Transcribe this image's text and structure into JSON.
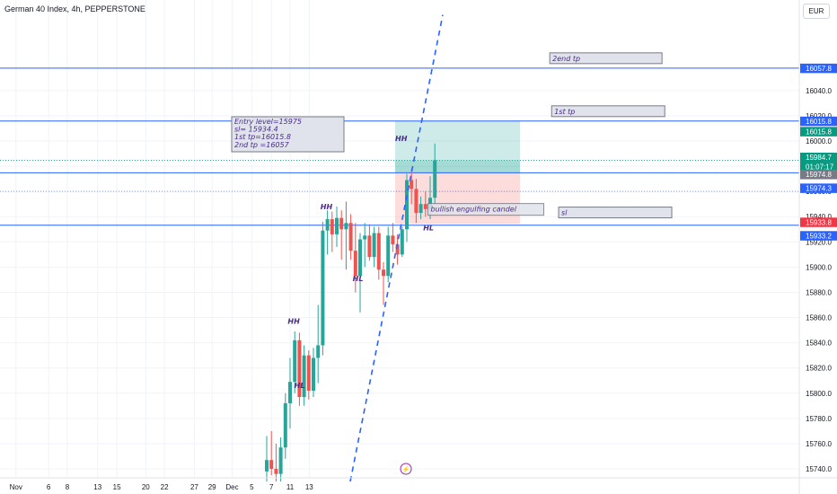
{
  "header": {
    "title": "German 40 Index, 4h, PEPPERSTONE",
    "currency": "EUR"
  },
  "chart_data": {
    "type": "candlestick",
    "title": "German 40 Index, 4h, PEPPERSTONE",
    "ylim": [
      15730,
      16100
    ],
    "y_ticks": [
      15740,
      15760,
      15780,
      15800,
      15820,
      15840,
      15860,
      15880,
      15900,
      15920,
      15940,
      15960,
      15980,
      16000,
      16020,
      16040
    ],
    "x_ticks": [
      "Nov",
      "6",
      "8",
      "13",
      "15",
      "20",
      "22",
      "27",
      "29",
      "Dec",
      "5",
      "7",
      "11",
      "13"
    ],
    "colors": {
      "up": "#26a69a",
      "down": "#ef5350",
      "level": "#2962ff",
      "trend": "#2962ff",
      "tp_zone": "#26a69a",
      "sl_zone": "#ef5350",
      "note": "#4a2b8c"
    },
    "candles": [
      {
        "o": 15738,
        "h": 15766,
        "l": 15730,
        "c": 15747
      },
      {
        "o": 15747,
        "h": 15770,
        "l": 15735,
        "c": 15740
      },
      {
        "o": 15740,
        "h": 15760,
        "l": 15730,
        "c": 15736
      },
      {
        "o": 15736,
        "h": 15765,
        "l": 15730,
        "c": 15757
      },
      {
        "o": 15757,
        "h": 15800,
        "l": 15748,
        "c": 15792
      },
      {
        "o": 15792,
        "h": 15828,
        "l": 15772,
        "c": 15809
      },
      {
        "o": 15809,
        "h": 15849,
        "l": 15800,
        "c": 15842
      },
      {
        "o": 15842,
        "h": 15848,
        "l": 15790,
        "c": 15797
      },
      {
        "o": 15797,
        "h": 15838,
        "l": 15790,
        "c": 15830
      },
      {
        "o": 15830,
        "h": 15834,
        "l": 15795,
        "c": 15802
      },
      {
        "o": 15802,
        "h": 15836,
        "l": 15797,
        "c": 15828
      },
      {
        "o": 15828,
        "h": 15870,
        "l": 15808,
        "c": 15838
      },
      {
        "o": 15838,
        "h": 15936,
        "l": 15830,
        "c": 15929
      },
      {
        "o": 15929,
        "h": 15945,
        "l": 15910,
        "c": 15938
      },
      {
        "o": 15938,
        "h": 15944,
        "l": 15912,
        "c": 15926
      },
      {
        "o": 15926,
        "h": 15948,
        "l": 15916,
        "c": 15939
      },
      {
        "o": 15939,
        "h": 15945,
        "l": 15906,
        "c": 15930
      },
      {
        "o": 15930,
        "h": 15952,
        "l": 15898,
        "c": 15935
      },
      {
        "o": 15935,
        "h": 15942,
        "l": 15906,
        "c": 15913
      },
      {
        "o": 15913,
        "h": 15935,
        "l": 15880,
        "c": 15893
      },
      {
        "o": 15893,
        "h": 15927,
        "l": 15864,
        "c": 15922
      },
      {
        "o": 15922,
        "h": 15935,
        "l": 15900,
        "c": 15925
      },
      {
        "o": 15925,
        "h": 15934,
        "l": 15905,
        "c": 15908
      },
      {
        "o": 15908,
        "h": 15932,
        "l": 15900,
        "c": 15927
      },
      {
        "o": 15927,
        "h": 15932,
        "l": 15890,
        "c": 15898
      },
      {
        "o": 15898,
        "h": 15904,
        "l": 15870,
        "c": 15893
      },
      {
        "o": 15893,
        "h": 15932,
        "l": 15888,
        "c": 15925
      },
      {
        "o": 15925,
        "h": 15935,
        "l": 15912,
        "c": 15918
      },
      {
        "o": 15918,
        "h": 15926,
        "l": 15902,
        "c": 15910
      },
      {
        "o": 15910,
        "h": 15932,
        "l": 15908,
        "c": 15930
      },
      {
        "o": 15930,
        "h": 15974,
        "l": 15920,
        "c": 15969
      },
      {
        "o": 15969,
        "h": 15978,
        "l": 15950,
        "c": 15962
      },
      {
        "o": 15962,
        "h": 15970,
        "l": 15935,
        "c": 15943
      },
      {
        "o": 15943,
        "h": 15956,
        "l": 15938,
        "c": 15950
      },
      {
        "o": 15950,
        "h": 15960,
        "l": 15940,
        "c": 15946
      },
      {
        "o": 15946,
        "h": 15972,
        "l": 15938,
        "c": 15955
      },
      {
        "o": 15955,
        "h": 15998,
        "l": 15950,
        "c": 15984.7
      }
    ],
    "levels": [
      {
        "price": 16057.8,
        "label": "16057.8",
        "color": "#2962ff"
      },
      {
        "price": 16015.8,
        "label": "16015.8",
        "color": "#2962ff"
      },
      {
        "price": 15974.8,
        "label": "15974.8",
        "color": "#2962ff"
      },
      {
        "price": 15933.2,
        "label": "15933.2",
        "color": "#2962ff"
      }
    ],
    "price_labels": [
      {
        "price": 16057.8,
        "text": "16057.8",
        "bg": "#2962ff"
      },
      {
        "price": 16015.8,
        "text": "16015.8",
        "bg": "#2962ff"
      },
      {
        "price": 16007.6,
        "text": "16015.8",
        "bg": "#089981"
      },
      {
        "price": 15987.2,
        "text": "15984.7",
        "bg": "#089981"
      },
      {
        "price": 15979.7,
        "text": "01:07:17",
        "bg": "#089981"
      },
      {
        "price": 15973.6,
        "text": "15974.8",
        "bg": "#787b86"
      },
      {
        "price": 15962.7,
        "text": "15974.3",
        "bg": "#2962ff"
      },
      {
        "price": 15935.7,
        "text": "15933.8",
        "bg": "#f23645"
      },
      {
        "price": 15925.0,
        "text": "15933.2",
        "bg": "#2962ff"
      }
    ],
    "position": {
      "entry": 15975,
      "sl": 15934.4,
      "tp1": 16015.8,
      "tp2": 16057,
      "start_index": 36.2,
      "end_index": 50.1
    },
    "trendline": {
      "x1": 34.2,
      "y1": 15730,
      "x2": 44.5,
      "y2": 16100
    },
    "dotted_line": {
      "price": 15984.7
    },
    "dotted_line2": {
      "price": 15960
    },
    "info_box": {
      "lines": [
        "Entry  level=15975",
        "sl= 15934.4",
        "1st tp=16015.8",
        "2nd tp =16057"
      ]
    },
    "annotations": [
      {
        "text": "HH",
        "index": 27.5,
        "price": 16000
      },
      {
        "text": "HH",
        "index": 11.5,
        "price": 15946
      },
      {
        "text": "HL",
        "index": 18.4,
        "price": 15889
      },
      {
        "text": "HH",
        "index": 4.5,
        "price": 15855
      },
      {
        "text": "HL",
        "index": 5.9,
        "price": 15804
      },
      {
        "text": "HL",
        "index": 33.5,
        "price": 15929
      },
      {
        "text": "bullish engulfing candel",
        "index": 35.1,
        "price": 15944
      }
    ],
    "label_boxes": [
      {
        "text": "2end tp",
        "index": 50.8,
        "price": 16063.5
      },
      {
        "text": "1st tp",
        "index": 51.2,
        "price": 16021.5
      },
      {
        "text": "sl",
        "index": 52.7,
        "price": 15941.2
      }
    ],
    "x_tick_positions": [
      0.0,
      7.0,
      11.0,
      17.5,
      21.6,
      27.8,
      31.8,
      38.2,
      42.0,
      46.3,
      50.5,
      54.7,
      58.7,
      62.8
    ]
  }
}
